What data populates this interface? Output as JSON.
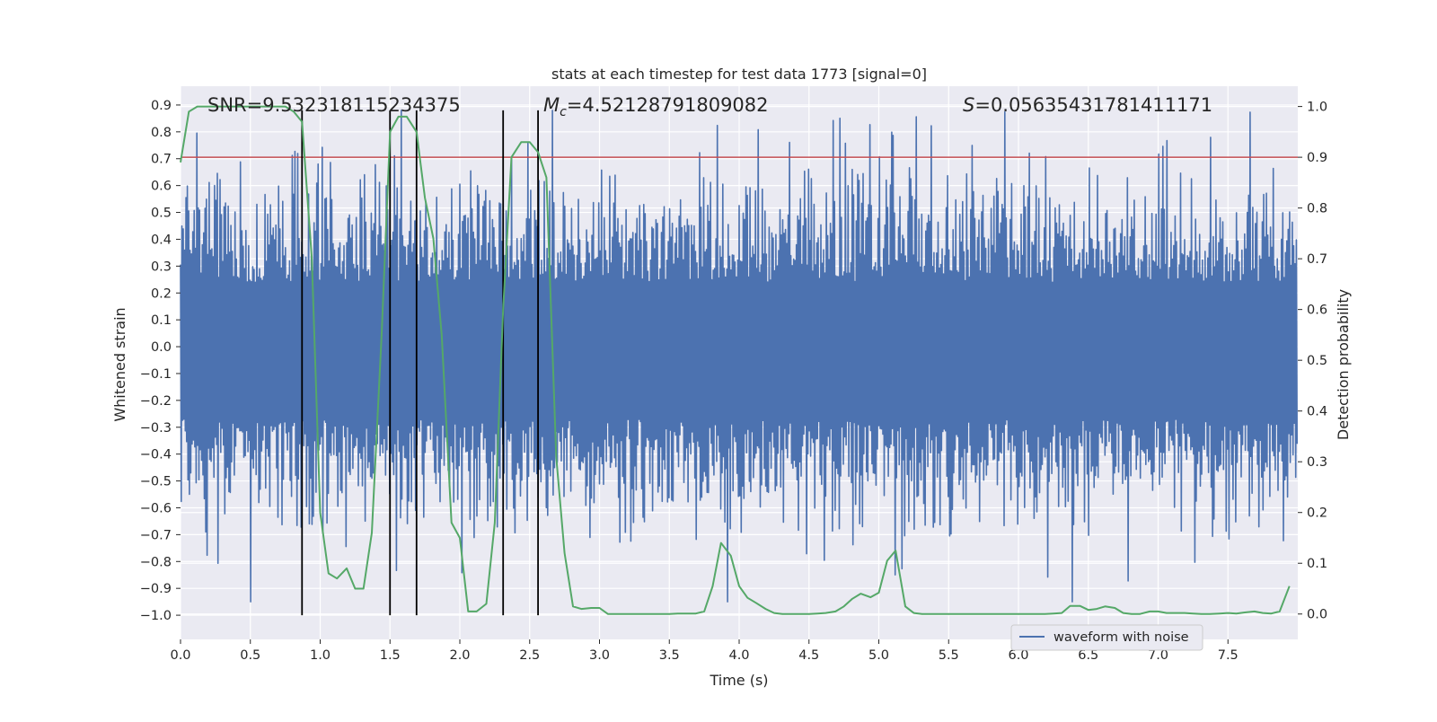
{
  "chart_data": {
    "type": "line",
    "title": "stats at each timestep for test data 1773 [signal=0]",
    "xlabel": "Time (s)",
    "ylabel_left": "Whitened strain",
    "ylabel_right": "Detection probability",
    "xlim": [
      0.0,
      8.0
    ],
    "ylim_left": [
      -1.09,
      0.97
    ],
    "ylim_right": [
      -0.05,
      1.04
    ],
    "xticks": [
      "0.0",
      "0.5",
      "1.0",
      "1.5",
      "2.0",
      "2.5",
      "3.0",
      "3.5",
      "4.0",
      "4.5",
      "5.0",
      "5.5",
      "6.0",
      "6.5",
      "7.0",
      "7.5"
    ],
    "xtick_values": [
      0.0,
      0.5,
      1.0,
      1.5,
      2.0,
      2.5,
      3.0,
      3.5,
      4.0,
      4.5,
      5.0,
      5.5,
      6.0,
      6.5,
      7.0,
      7.5
    ],
    "yticks_left": [
      "0.9",
      "0.8",
      "0.7",
      "0.6",
      "0.5",
      "0.4",
      "0.3",
      "0.2",
      "0.1",
      "0.0",
      "−0.1",
      "−0.2",
      "−0.3",
      "−0.4",
      "−0.5",
      "−0.6",
      "−0.7",
      "−0.8",
      "−0.9",
      "−1.0"
    ],
    "ytick_values_left": [
      0.9,
      0.8,
      0.7,
      0.6,
      0.5,
      0.4,
      0.3,
      0.2,
      0.1,
      0.0,
      -0.1,
      -0.2,
      -0.3,
      -0.4,
      -0.5,
      -0.6,
      -0.7,
      -0.8,
      -0.9,
      -1.0
    ],
    "yticks_right": [
      "1.0",
      "0.9",
      "0.8",
      "0.7",
      "0.6",
      "0.5",
      "0.4",
      "0.3",
      "0.2",
      "0.1",
      "0.0"
    ],
    "ytick_values_right": [
      1.0,
      0.9,
      0.8,
      0.7,
      0.6,
      0.5,
      0.4,
      0.3,
      0.2,
      0.1,
      0.0
    ],
    "annotations": {
      "snr": "SNR=9.532318115234375",
      "mc_symbol": "M",
      "mc_sub": "c",
      "mc_value": "=4.52128791809082",
      "s_symbol": "S",
      "s_value": "=0.05635431781411171"
    },
    "legend": {
      "label": "waveform with noise",
      "placement": "lower-right"
    },
    "threshold": {
      "value": 0.9,
      "axis": "right",
      "color": "#c44e52"
    },
    "vertical_markers": [
      0.87,
      1.5,
      1.69,
      2.31,
      2.56
    ],
    "marker_range_left": [
      -1.0,
      0.88
    ],
    "detection_probability": {
      "color": "#55a868",
      "x": [
        0.0,
        0.06,
        0.12,
        0.19,
        0.25,
        0.31,
        0.37,
        0.44,
        0.5,
        0.56,
        0.62,
        0.69,
        0.75,
        0.81,
        0.87,
        0.94,
        1.0,
        1.06,
        1.12,
        1.19,
        1.25,
        1.31,
        1.37,
        1.44,
        1.5,
        1.56,
        1.62,
        1.69,
        1.75,
        1.81,
        1.87,
        1.94,
        2.0,
        2.06,
        2.12,
        2.19,
        2.25,
        2.31,
        2.37,
        2.44,
        2.5,
        2.56,
        2.62,
        2.69,
        2.75,
        2.81,
        2.87,
        2.94,
        3.0,
        3.06,
        3.12,
        3.19,
        3.25,
        3.31,
        3.37,
        3.44,
        3.5,
        3.56,
        3.62,
        3.69,
        3.75,
        3.81,
        3.87,
        3.94,
        4.0,
        4.06,
        4.12,
        4.19,
        4.25,
        4.31,
        4.37,
        4.44,
        4.5,
        4.56,
        4.62,
        4.69,
        4.75,
        4.81,
        4.87,
        4.94,
        5.0,
        5.06,
        5.12,
        5.19,
        5.25,
        5.31,
        5.37,
        5.44,
        5.5,
        5.56,
        5.62,
        5.69,
        5.75,
        5.81,
        5.87,
        5.94,
        6.0,
        6.06,
        6.12,
        6.19,
        6.25,
        6.31,
        6.37,
        6.44,
        6.5,
        6.56,
        6.62,
        6.69,
        6.75,
        6.81,
        6.87,
        6.94,
        7.0,
        7.06,
        7.12,
        7.19,
        7.25,
        7.31,
        7.37,
        7.44,
        7.5,
        7.56,
        7.62,
        7.69,
        7.75,
        7.81,
        7.87,
        7.94
      ],
      "y": [
        0.89,
        0.99,
        1.0,
        1.0,
        1.0,
        1.0,
        1.0,
        1.0,
        1.0,
        1.0,
        1.0,
        1.0,
        1.0,
        0.99,
        0.97,
        0.7,
        0.2,
        0.08,
        0.07,
        0.09,
        0.05,
        0.05,
        0.16,
        0.55,
        0.95,
        0.98,
        0.98,
        0.95,
        0.82,
        0.74,
        0.55,
        0.18,
        0.15,
        0.005,
        0.005,
        0.02,
        0.18,
        0.6,
        0.9,
        0.93,
        0.93,
        0.91,
        0.86,
        0.31,
        0.12,
        0.015,
        0.01,
        0.012,
        0.012,
        0.0,
        0.0,
        0.0,
        0.0,
        0.0,
        0.0,
        0.0,
        0.0,
        0.001,
        0.001,
        0.001,
        0.005,
        0.055,
        0.14,
        0.115,
        0.055,
        0.032,
        0.022,
        0.01,
        0.002,
        0.0,
        0.0,
        0.0,
        0.0,
        0.001,
        0.002,
        0.005,
        0.015,
        0.03,
        0.04,
        0.033,
        0.042,
        0.105,
        0.125,
        0.015,
        0.002,
        0.0,
        0.0,
        0.0,
        0.0,
        0.0,
        0.0,
        0.0,
        0.0,
        0.0,
        0.0,
        0.0,
        0.0,
        0.0,
        0.0,
        0.0,
        0.001,
        0.002,
        0.016,
        0.016,
        0.008,
        0.01,
        0.015,
        0.012,
        0.002,
        0.0,
        0.0,
        0.005,
        0.005,
        0.002,
        0.002,
        0.002,
        0.001,
        0.0,
        0.0,
        0.001,
        0.002,
        0.001,
        0.003,
        0.005,
        0.002,
        0.001,
        0.005,
        0.055
      ]
    },
    "waveform": {
      "name": "waveform with noise",
      "color": "#4c72b0",
      "t_start": 0.0,
      "t_end": 7.99,
      "n_samples": 820,
      "seed": 1773,
      "max_value": 0.88,
      "min_value": -0.95
    }
  }
}
